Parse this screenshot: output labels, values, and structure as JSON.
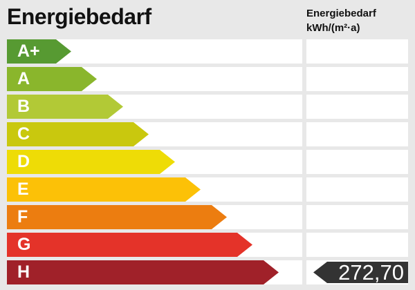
{
  "title": "Energiebedarf",
  "unit_header": {
    "line1": "Energiebedarf",
    "line2": "kWh/(m²·a)"
  },
  "scale": [
    {
      "label": "A+",
      "color": "#579a32",
      "arrow_width": 93
    },
    {
      "label": "A",
      "color": "#8ab62c",
      "arrow_width": 130
    },
    {
      "label": "B",
      "color": "#b2c936",
      "arrow_width": 168
    },
    {
      "label": "C",
      "color": "#c9c80e",
      "arrow_width": 205
    },
    {
      "label": "D",
      "color": "#eedc06",
      "arrow_width": 243
    },
    {
      "label": "E",
      "color": "#fcc107",
      "arrow_width": 280
    },
    {
      "label": "F",
      "color": "#ec7d10",
      "arrow_width": 318
    },
    {
      "label": "G",
      "color": "#e43329",
      "arrow_width": 355
    },
    {
      "label": "H",
      "color": "#a02129",
      "arrow_width": 393
    }
  ],
  "value": {
    "text": "272,70",
    "class": "H",
    "arrow_color": "#333333"
  },
  "colors": {
    "background": "#e8e8e8",
    "track": "#ffffff",
    "title_text": "#111111",
    "value_text": "#ffffff"
  },
  "chart_data": {
    "type": "bar",
    "orientation": "horizontal",
    "title": "Energiebedarf",
    "unit": "kWh/(m²·a)",
    "categories": [
      "A+",
      "A",
      "B",
      "C",
      "D",
      "E",
      "F",
      "G",
      "H"
    ],
    "values": [
      93,
      130,
      168,
      205,
      243,
      280,
      318,
      355,
      393
    ],
    "values_note": "relative arrow lengths of the efficiency-class scale (pixels)",
    "marked_value": 272.7,
    "marked_class": "H",
    "legend": "off",
    "grid": "off"
  }
}
